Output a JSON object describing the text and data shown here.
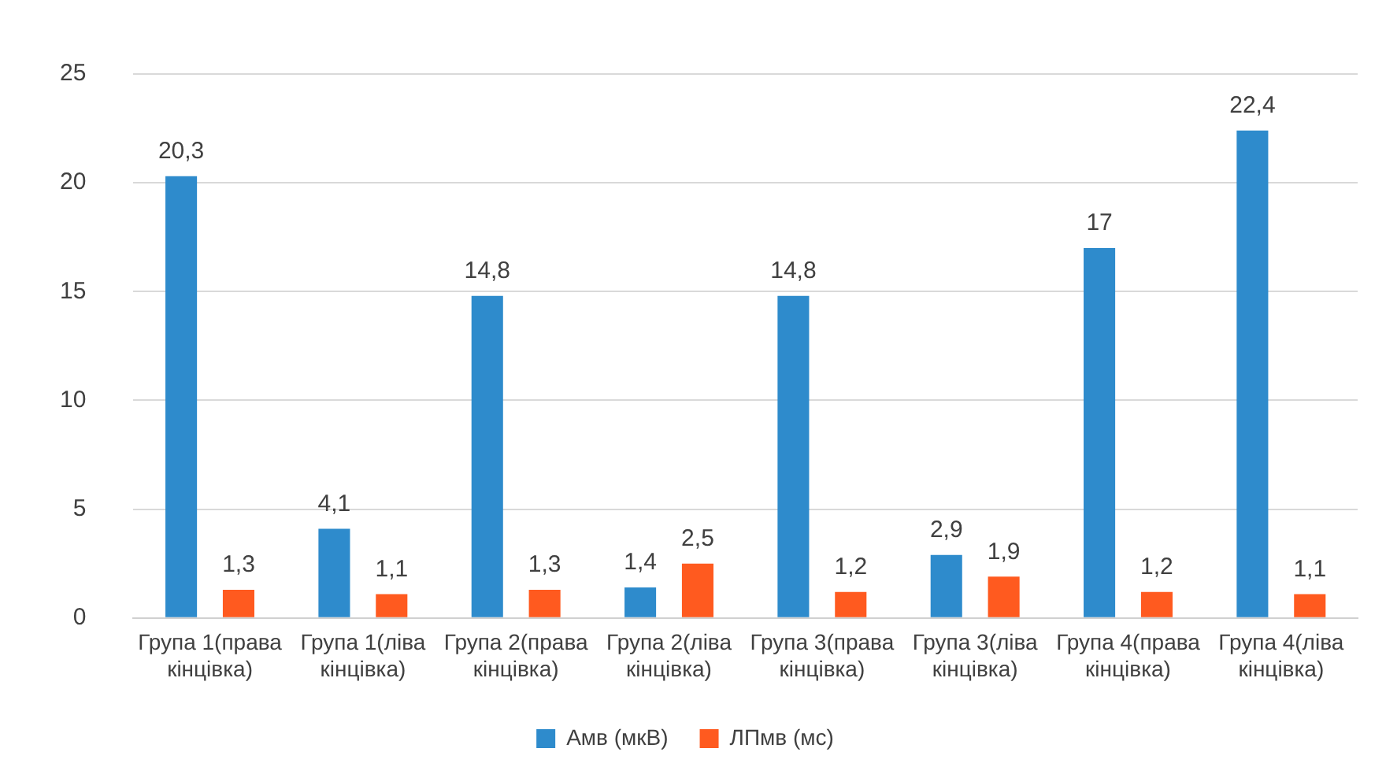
{
  "chart_data": {
    "type": "bar",
    "categories": [
      "Група 1(права кінцівка)",
      "Група 1(ліва кінцівка)",
      "Група 2(права кінцівка)",
      "Група 2(ліва кінцівка)",
      "Група 3(права кінцівка)",
      "Група 3(ліва кінцівка)",
      "Група 4(права кінцівка)",
      "Група 4(ліва кінцівка)"
    ],
    "series": [
      {
        "name": "Амв (мкВ)",
        "color": "#2e8bcc",
        "values": [
          20.3,
          4.1,
          14.8,
          1.4,
          14.8,
          2.9,
          17,
          22.4
        ],
        "value_labels": [
          "20,3",
          "4,1",
          "14,8",
          "1,4",
          "14,8",
          "2,9",
          "17",
          "22,4"
        ]
      },
      {
        "name": "ЛПмв (мс)",
        "color": "#ff5a1f",
        "values": [
          1.3,
          1.1,
          1.3,
          2.5,
          1.2,
          1.9,
          1.2,
          1.1
        ],
        "value_labels": [
          "1,3",
          "1,1",
          "1,3",
          "2,5",
          "1,2",
          "1,9",
          "1,2",
          "1,1"
        ]
      }
    ],
    "ylim": [
      0,
      25
    ],
    "yticks": [
      0,
      5,
      10,
      15,
      20,
      25
    ],
    "grid": "y",
    "legend": "bottom"
  }
}
